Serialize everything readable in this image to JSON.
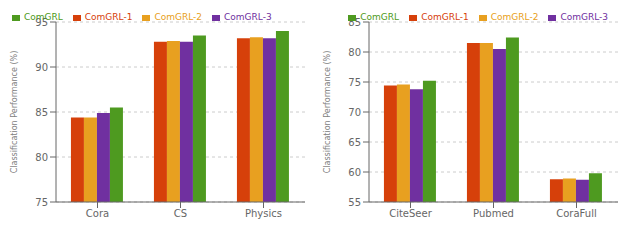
{
  "chart_data": [
    {
      "type": "bar",
      "categories": [
        "Cora",
        "CS",
        "Physics"
      ],
      "series": [
        {
          "name": "ComGRL-1",
          "color": "#d6400a",
          "values": [
            84.4,
            92.8,
            93.2
          ]
        },
        {
          "name": "ComGRL-2",
          "color": "#e8a020",
          "values": [
            84.4,
            92.9,
            93.3
          ]
        },
        {
          "name": "ComGRL-3",
          "color": "#7030a0",
          "values": [
            84.9,
            92.8,
            93.2
          ]
        },
        {
          "name": "ComGRL",
          "color": "#4e9a20",
          "values": [
            85.5,
            93.5,
            94.0
          ]
        }
      ],
      "ylim": [
        75,
        95
      ],
      "yticks": [
        75,
        80,
        85,
        90,
        95
      ],
      "ylabel": "Classification Performance (%)",
      "grid": true,
      "legend": "upper left"
    },
    {
      "type": "bar",
      "categories": [
        "CiteSeer",
        "Pubmed",
        "CoraFull"
      ],
      "series": [
        {
          "name": "ComGRL-1",
          "color": "#d6400a",
          "values": [
            74.4,
            81.5,
            58.8
          ]
        },
        {
          "name": "ComGRL-2",
          "color": "#e8a020",
          "values": [
            74.6,
            81.5,
            58.9
          ]
        },
        {
          "name": "ComGRL-3",
          "color": "#7030a0",
          "values": [
            73.8,
            80.5,
            58.7
          ]
        },
        {
          "name": "ComGRL",
          "color": "#4e9a20",
          "values": [
            75.2,
            82.4,
            59.8
          ]
        }
      ],
      "ylim": [
        55,
        85
      ],
      "yticks": [
        55,
        60,
        65,
        70,
        75,
        80,
        85
      ],
      "ylabel": "Classification Performance (%)",
      "grid": true,
      "legend": "upper right"
    }
  ]
}
